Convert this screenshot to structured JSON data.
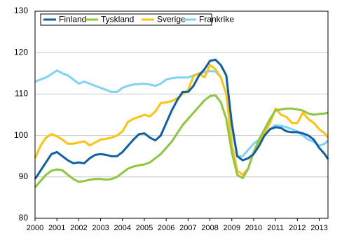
{
  "chart_data": {
    "type": "line",
    "x": [
      2000,
      2000.25,
      2000.5,
      2000.75,
      2001,
      2001.25,
      2001.5,
      2001.75,
      2002,
      2002.25,
      2002.5,
      2002.75,
      2003,
      2003.25,
      2003.5,
      2003.75,
      2004,
      2004.25,
      2004.5,
      2004.75,
      2005,
      2005.25,
      2005.5,
      2005.75,
      2006,
      2006.25,
      2006.5,
      2006.75,
      2007,
      2007.25,
      2007.5,
      2007.75,
      2008,
      2008.25,
      2008.5,
      2008.75,
      2009,
      2009.25,
      2009.5,
      2009.75,
      2010,
      2010.25,
      2010.5,
      2010.75,
      2011,
      2011.25,
      2011.5,
      2011.75,
      2012,
      2012.25,
      2012.5,
      2012.75,
      2013,
      2013.25,
      2013.4
    ],
    "series": [
      {
        "name": "Finland",
        "color": "#0f5fa6",
        "values": [
          89.5,
          91.5,
          93.5,
          95.5,
          96,
          95,
          94,
          93.3,
          93.5,
          93.3,
          94.5,
          95.3,
          95.5,
          95.3,
          95,
          95,
          96,
          97.5,
          99,
          100.3,
          100.5,
          99.5,
          98.8,
          100,
          103,
          106,
          108.5,
          110.5,
          110.5,
          112,
          114.5,
          116,
          118,
          118.3,
          117,
          114.5,
          103,
          95,
          94,
          94.5,
          95.5,
          97.5,
          100,
          101.5,
          102,
          101.8,
          101,
          100.8,
          100.8,
          100.5,
          100,
          99,
          97,
          95.5,
          94.3
        ]
      },
      {
        "name": "Tyskland",
        "color": "#8ec63f",
        "values": [
          87.5,
          89,
          90.5,
          91.5,
          91.8,
          91.6,
          90.5,
          89.5,
          88.8,
          89,
          89.3,
          89.5,
          89.5,
          89.3,
          89.5,
          90,
          91,
          92,
          92.5,
          92.8,
          93,
          93.5,
          94.5,
          95.5,
          97,
          98.5,
          100.5,
          102.5,
          104,
          105.5,
          107,
          108.5,
          109.5,
          109.7,
          108,
          104,
          96,
          90.5,
          89.7,
          92,
          96,
          99,
          101.5,
          104,
          106,
          106.3,
          106.5,
          106.5,
          106.3,
          106,
          105.3,
          105,
          105.2,
          105.3,
          105.5
        ]
      },
      {
        "name": "Sverige",
        "color": "#ffc20e",
        "values": [
          94.5,
          97.5,
          99.5,
          100.3,
          99.8,
          99,
          98,
          98,
          98.3,
          98.6,
          97.6,
          98.3,
          99,
          99.2,
          99.5,
          100,
          101,
          103.3,
          104,
          104.5,
          105,
          104.6,
          105.8,
          107.8,
          108,
          108.3,
          109,
          110,
          111,
          114.3,
          115,
          114,
          117,
          116,
          114,
          110,
          98,
          91.5,
          90.5,
          92,
          96,
          98.5,
          100.5,
          103,
          106.5,
          105,
          104.5,
          103,
          103,
          105.5,
          104,
          103,
          101.5,
          100.5,
          99.5
        ]
      },
      {
        "name": "Frankrike",
        "color": "#7fd2f5",
        "values": [
          113,
          113.5,
          114,
          114.8,
          115.7,
          115,
          114.5,
          113.5,
          112.5,
          113,
          112.5,
          112,
          111.5,
          111,
          110.5,
          110.5,
          111.5,
          112,
          112.3,
          112.4,
          112.5,
          112.3,
          112,
          112.5,
          113.5,
          113.8,
          114,
          114,
          114,
          114.5,
          115,
          115.3,
          115.5,
          115.5,
          114,
          110,
          102,
          95,
          95,
          96.5,
          98,
          99,
          100,
          101.5,
          102.5,
          102.3,
          102,
          101.5,
          101,
          100,
          99,
          98.5,
          97.5,
          98,
          98.8
        ]
      }
    ],
    "xlim": [
      2000,
      2013.4
    ],
    "xticks": [
      2000,
      2001,
      2002,
      2003,
      2004,
      2005,
      2006,
      2007,
      2008,
      2009,
      2010,
      2011,
      2012,
      2013
    ],
    "ylim": [
      80,
      130
    ],
    "yticks": [
      80,
      90,
      100,
      110,
      120,
      130
    ],
    "grid": true,
    "legend": "top-left"
  }
}
